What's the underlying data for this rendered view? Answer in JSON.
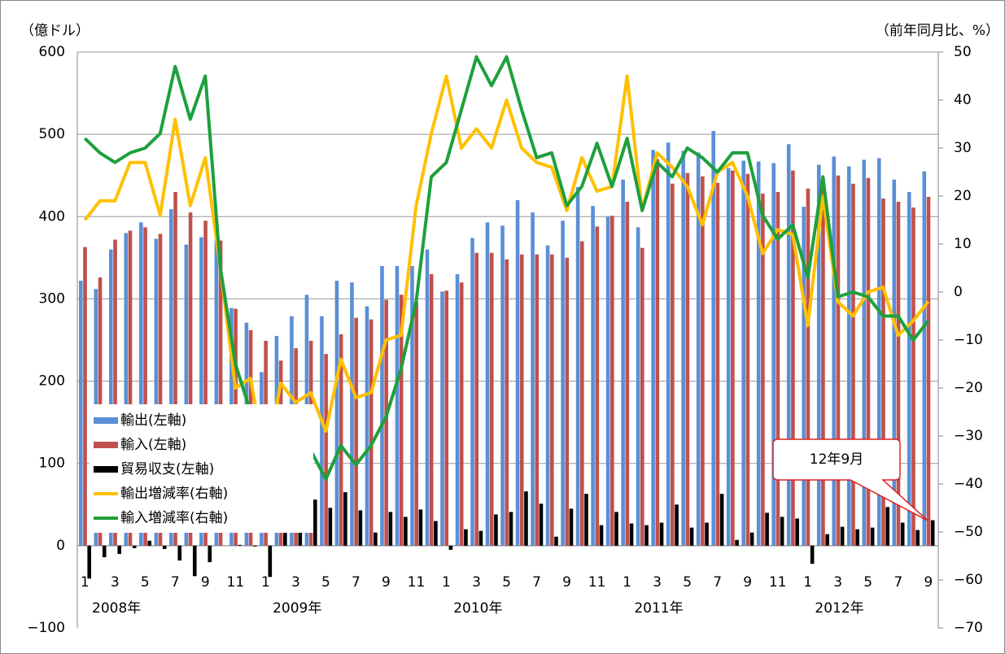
{
  "chart_data": {
    "type": "bar-line",
    "y_label": "（億ドル）",
    "y2_label": "（前年同月比、%）",
    "categories": [
      "1",
      null,
      "3",
      null,
      "5",
      null,
      "7",
      null,
      "9",
      null,
      "11",
      null,
      "1",
      null,
      "3",
      null,
      "5",
      null,
      "7",
      null,
      "9",
      null,
      "11",
      null,
      "1",
      null,
      "3",
      null,
      "5",
      null,
      "7",
      null,
      "9",
      null,
      "11",
      null,
      "1",
      null,
      "3",
      null,
      "5",
      null,
      "7",
      null,
      "9",
      null,
      "11",
      null,
      "1",
      null,
      "3",
      null,
      "5",
      null,
      "7",
      null,
      "9"
    ],
    "years": [
      "2008年",
      "2009年",
      "2010年",
      "2011年",
      "2012年"
    ],
    "ylim": [
      -100,
      600
    ],
    "yticks": [
      {
        "value": -100,
        "label": "−100"
      },
      0,
      100,
      200,
      300,
      400,
      500,
      600
    ],
    "y2lim": [
      -70,
      50
    ],
    "y2ticks": [
      {
        "value": -70,
        "label": "−70"
      },
      {
        "value": -60,
        "label": "−60"
      },
      {
        "value": -50,
        "label": "−50"
      },
      {
        "value": -40,
        "label": "−40"
      },
      {
        "value": -30,
        "label": "−30"
      },
      {
        "value": -20,
        "label": "−20"
      },
      {
        "value": -10,
        "label": "−10"
      },
      0,
      10,
      20,
      30,
      40,
      50
    ],
    "grid": true,
    "legend": "left",
    "series": [
      {
        "name": "輸出(左軸)",
        "type": "bar",
        "color": "#5b8fd6",
        "values": [
          322,
          312,
          360,
          380,
          393,
          373,
          409,
          366,
          375,
          371,
          289,
          271,
          211,
          255,
          279,
          305,
          279,
          322,
          320,
          291,
          340,
          340,
          340,
          360,
          309,
          330,
          374,
          393,
          389,
          420,
          405,
          365,
          395,
          436,
          413,
          400,
          445,
          387,
          481,
          490,
          480,
          478,
          504,
          459,
          468,
          467,
          465,
          488,
          412,
          463,
          473,
          461,
          469,
          471,
          445,
          430,
          455
        ]
      },
      {
        "name": "輸入(左軸)",
        "type": "bar",
        "color": "#c0504d",
        "values": [
          363,
          326,
          372,
          383,
          387,
          379,
          430,
          405,
          395,
          371,
          288,
          262,
          249,
          225,
          240,
          249,
          233,
          257,
          277,
          275,
          299,
          305,
          296,
          330,
          310,
          320,
          356,
          356,
          348,
          354,
          354,
          354,
          350,
          370,
          388,
          401,
          418,
          362,
          470,
          440,
          453,
          449,
          441,
          456,
          452,
          428,
          430,
          456,
          434,
          447,
          450,
          440,
          447,
          422,
          418,
          411,
          424
        ]
      },
      {
        "name": "貿易収支(左軸)",
        "type": "bar",
        "color": "#000000",
        "values": [
          -40,
          -14,
          -10,
          -3,
          6,
          -4,
          -18,
          -37,
          -20,
          0,
          1,
          -1,
          -38,
          30,
          39,
          56,
          46,
          65,
          43,
          16,
          41,
          35,
          44,
          30,
          -5,
          20,
          18,
          38,
          41,
          66,
          51,
          11,
          45,
          63,
          25,
          41,
          27,
          25,
          28,
          50,
          22,
          28,
          63,
          7,
          16,
          40,
          35,
          33,
          -22,
          14,
          23,
          20,
          22,
          47,
          28,
          19,
          31
        ]
      },
      {
        "name": "輸出増減率(右軸)",
        "type": "line",
        "axis": "y2",
        "color": "#ffc000",
        "values": [
          15,
          19,
          19,
          27,
          27,
          16,
          36,
          18,
          28,
          5,
          -20,
          -18,
          -36,
          -19,
          -23,
          -21,
          -29,
          -14,
          -22,
          -21,
          -10,
          -9,
          18,
          33,
          45,
          30,
          34,
          30,
          40,
          30,
          27,
          26,
          17,
          28,
          21,
          22,
          45,
          17,
          29,
          26,
          22,
          14,
          25,
          27,
          20,
          8,
          13,
          12,
          -7,
          20,
          -2,
          -5,
          0,
          1,
          -9,
          -6,
          -2
        ]
      },
      {
        "name": "輸入増減率(右軸)",
        "type": "line",
        "axis": "y2",
        "color": "#1ea03c",
        "values": [
          32,
          29,
          27,
          29,
          30,
          33,
          47,
          36,
          45,
          5,
          -15,
          -25,
          -35,
          -28,
          -30,
          -33,
          -39,
          -32,
          -36,
          -32,
          -26,
          -16,
          -2,
          24,
          27,
          38,
          49,
          43,
          49,
          38,
          28,
          29,
          18,
          22,
          31,
          22,
          32,
          17,
          27,
          24,
          30,
          28,
          25,
          29,
          29,
          16,
          11,
          14,
          3,
          24,
          -1,
          0,
          -1,
          -5,
          -5,
          -10,
          -6
        ]
      }
    ],
    "annotation": "12年9月"
  }
}
